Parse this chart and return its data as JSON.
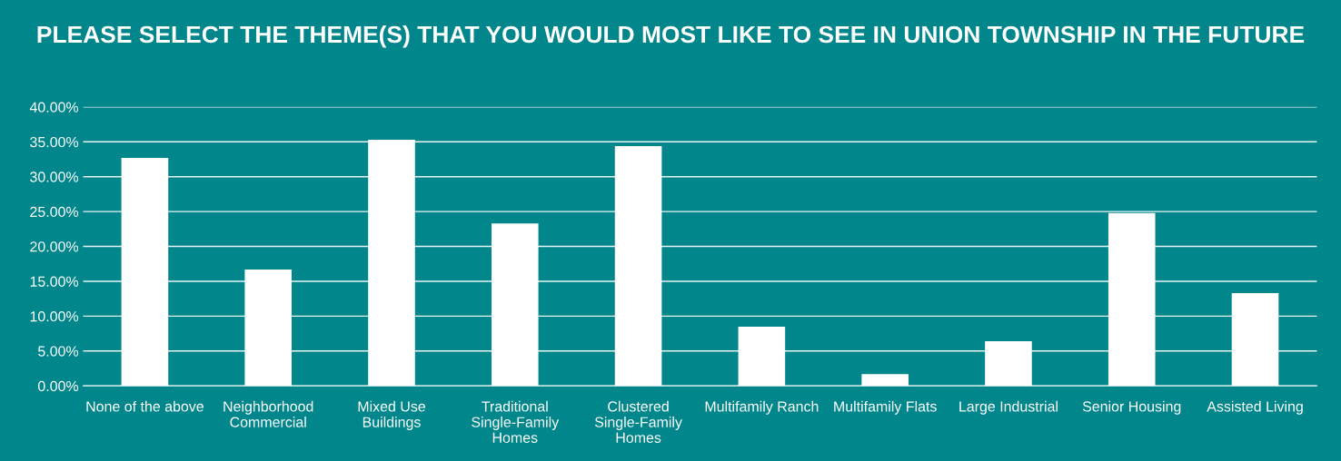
{
  "chart_data": {
    "type": "bar",
    "title": "PLEASE SELECT THE THEME(S) THAT YOU WOULD MOST LIKE TO SEE IN UNION TOWNSHIP IN THE FUTURE",
    "categories": [
      "None of the above",
      "Neighborhood Commercial",
      "Mixed Use Buildings",
      "Traditional Single-Family Homes",
      "Clustered Single-Family Homes",
      "Multifamily Ranch",
      "Multifamily Flats",
      "Large Industrial",
      "Senior Housing",
      "Assisted Living"
    ],
    "values": [
      32.7,
      16.7,
      35.3,
      23.3,
      34.4,
      8.5,
      1.7,
      6.4,
      24.8,
      13.3
    ],
    "color": "#ffffff",
    "ylim": [
      0,
      40
    ],
    "yticks": [
      {
        "value": 0,
        "label": "0.00%"
      },
      {
        "value": 5,
        "label": "5.00%"
      },
      {
        "value": 10,
        "label": "10.00%"
      },
      {
        "value": 15,
        "label": "15.00%"
      },
      {
        "value": 20,
        "label": "20.00%"
      },
      {
        "value": 25,
        "label": "25.00%"
      },
      {
        "value": 30,
        "label": "30.00%"
      },
      {
        "value": 35,
        "label": "35.00%"
      },
      {
        "value": 40,
        "label": "40.00%"
      }
    ],
    "grid": "y"
  }
}
